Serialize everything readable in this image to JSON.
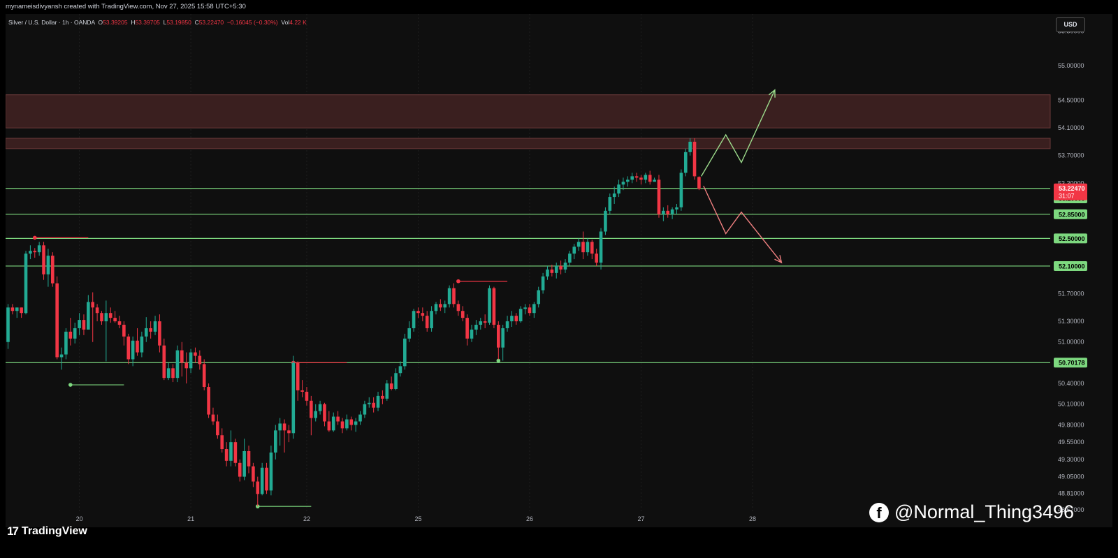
{
  "header": {
    "credit": "mynameisdivyansh created with TradingView.com, Nov 27, 2025 15:58 UTC+5:30"
  },
  "legend": {
    "symbol": "Silver / U.S. Dollar · 1h · OANDA",
    "o_label": "O",
    "o_value": "53.39205",
    "h_label": "H",
    "h_value": "53.39705",
    "l_label": "L",
    "l_value": "53.19850",
    "c_label": "C",
    "c_value": "53.22470",
    "change": "−0.16045 (−0.30%)",
    "vol_label": "Vol",
    "vol_value": "4.22 K"
  },
  "currency_button": "USD",
  "branding": {
    "tradingview_mark": "17",
    "tradingview_name": "TradingView",
    "watermark_icon": "f",
    "watermark_text": "@Normal_Thing3496"
  },
  "colors": {
    "up": "#22ab94",
    "down": "#f23645",
    "hline": "#7dd87f",
    "zone": "#3a1f1f",
    "zone_border": "#6b3a3a",
    "arrow_up": "#9ddc8c",
    "arrow_down": "#f08080",
    "background": "#0f0f0f",
    "grid": "#1f1f1f"
  },
  "chart_data": {
    "type": "candlestick",
    "instrument": "Silver / U.S. Dollar",
    "interval": "1h",
    "broker": "OANDA",
    "y_range": [
      48.52,
      55.75
    ],
    "y_ticks": [
      "55.50000",
      "55.00000",
      "54.50000",
      "54.10000",
      "53.70000",
      "53.30000",
      "51.70000",
      "51.30000",
      "51.00000",
      "50.40000",
      "50.10000",
      "49.80000",
      "49.55000",
      "49.30000",
      "49.05000",
      "48.81000",
      "48.57000"
    ],
    "x_ticks": [
      {
        "label": "20",
        "index": 16
      },
      {
        "label": "21",
        "index": 41
      },
      {
        "label": "22",
        "index": 67
      },
      {
        "label": "25",
        "index": 92
      },
      {
        "label": "26",
        "index": 117
      },
      {
        "label": "27",
        "index": 142
      },
      {
        "label": "28",
        "index": 167
      }
    ],
    "last_price": {
      "value": 53.2247,
      "label": "53.22470",
      "countdown": "31:07"
    },
    "horizontal_levels": [
      {
        "value": 53.2247
      },
      {
        "value": 52.85,
        "label": "52.85000"
      },
      {
        "value": 52.5,
        "label": "52.50000"
      },
      {
        "value": 52.1,
        "label": "52.10000"
      },
      {
        "value": 50.70178,
        "label": "50.70178"
      }
    ],
    "extra_price_tags": [
      {
        "value": 53.2,
        "label": "53.20000"
      }
    ],
    "resistance_zones": [
      [
        54.1,
        54.58
      ],
      [
        53.8,
        53.95
      ]
    ],
    "swing_markers": [
      {
        "kind": "high",
        "index": 6,
        "value": 52.51,
        "end_index": 18
      },
      {
        "kind": "low",
        "index": 14,
        "value": 50.38,
        "end_index": 26
      },
      {
        "kind": "low",
        "index": 56,
        "value": 48.62,
        "end_index": 68
      },
      {
        "kind": "high",
        "index": 64,
        "value": 50.7,
        "end_index": 76
      },
      {
        "kind": "high",
        "index": 101,
        "value": 51.88,
        "end_index": 112
      },
      {
        "kind": "low",
        "index": 110,
        "value": 50.73,
        "end_index": 110
      }
    ],
    "projections": [
      {
        "name": "bullish",
        "points": [
          [
            155.5,
            53.4
          ],
          [
            161,
            54.0
          ],
          [
            164.5,
            53.6
          ],
          [
            172,
            54.65
          ]
        ]
      },
      {
        "name": "bearish",
        "points": [
          [
            156,
            53.26
          ],
          [
            161,
            52.57
          ],
          [
            164.5,
            52.88
          ],
          [
            173.5,
            52.15
          ]
        ]
      }
    ],
    "candles": [
      [
        51.0,
        51.55,
        50.9,
        51.5
      ],
      [
        51.5,
        51.55,
        51.4,
        51.45
      ],
      [
        51.45,
        51.5,
        51.35,
        51.5
      ],
      [
        51.5,
        51.5,
        51.35,
        51.42
      ],
      [
        51.42,
        52.32,
        51.4,
        52.28
      ],
      [
        52.28,
        52.4,
        52.2,
        52.32
      ],
      [
        52.32,
        52.36,
        52.22,
        52.3
      ],
      [
        52.3,
        52.45,
        52.25,
        52.4
      ],
      [
        52.4,
        52.45,
        51.9,
        51.98
      ],
      [
        51.98,
        52.35,
        51.8,
        52.25
      ],
      [
        52.25,
        52.3,
        51.8,
        51.85
      ],
      [
        51.85,
        51.95,
        50.75,
        50.78
      ],
      [
        50.78,
        50.92,
        50.6,
        50.82
      ],
      [
        50.82,
        51.2,
        50.75,
        51.15
      ],
      [
        51.15,
        51.35,
        50.95,
        51.05
      ],
      [
        51.05,
        51.28,
        50.98,
        51.2
      ],
      [
        51.2,
        51.42,
        51.1,
        51.32
      ],
      [
        51.32,
        51.4,
        51.1,
        51.18
      ],
      [
        51.18,
        51.68,
        51.2,
        51.58
      ],
      [
        51.58,
        51.72,
        51.0,
        51.5
      ],
      [
        51.5,
        51.55,
        51.3,
        51.42
      ],
      [
        51.42,
        51.45,
        51.25,
        51.3
      ],
      [
        51.3,
        51.6,
        50.72,
        51.42
      ],
      [
        51.42,
        51.5,
        51.28,
        51.35
      ],
      [
        51.35,
        51.45,
        51.28,
        51.3
      ],
      [
        51.3,
        51.38,
        51.2,
        51.25
      ],
      [
        51.25,
        51.3,
        50.95,
        51.08
      ],
      [
        51.08,
        51.12,
        50.68,
        50.75
      ],
      [
        50.75,
        51.08,
        50.65,
        51.02
      ],
      [
        51.02,
        51.2,
        50.8,
        50.85
      ],
      [
        50.85,
        51.15,
        50.78,
        51.08
      ],
      [
        51.08,
        51.36,
        51.0,
        51.2
      ],
      [
        51.2,
        51.3,
        51.05,
        51.15
      ],
      [
        51.15,
        51.38,
        51.1,
        51.3
      ],
      [
        51.3,
        51.4,
        50.85,
        50.95
      ],
      [
        50.95,
        51.05,
        50.45,
        50.48
      ],
      [
        50.48,
        50.7,
        50.45,
        50.62
      ],
      [
        50.62,
        50.68,
        50.42,
        50.48
      ],
      [
        50.48,
        50.95,
        50.42,
        50.88
      ],
      [
        50.88,
        51.0,
        50.5,
        50.7
      ],
      [
        50.7,
        50.85,
        50.4,
        50.62
      ],
      [
        50.62,
        50.9,
        50.55,
        50.85
      ],
      [
        50.85,
        50.92,
        50.7,
        50.8
      ],
      [
        50.8,
        50.88,
        50.6,
        50.68
      ],
      [
        50.68,
        50.75,
        50.3,
        50.35
      ],
      [
        50.35,
        50.4,
        49.9,
        49.95
      ],
      [
        49.95,
        50.05,
        49.8,
        49.85
      ],
      [
        49.85,
        49.95,
        49.6,
        49.65
      ],
      [
        49.65,
        49.75,
        49.4,
        49.45
      ],
      [
        49.45,
        49.55,
        49.2,
        49.28
      ],
      [
        49.28,
        49.72,
        49.2,
        49.55
      ],
      [
        49.55,
        49.6,
        49.2,
        49.25
      ],
      [
        49.25,
        49.3,
        48.98,
        49.05
      ],
      [
        49.05,
        49.6,
        49.0,
        49.42
      ],
      [
        49.42,
        49.5,
        49.1,
        49.2
      ],
      [
        49.2,
        49.25,
        48.9,
        48.98
      ],
      [
        48.98,
        49.05,
        48.62,
        48.8
      ],
      [
        48.8,
        49.25,
        48.78,
        49.18
      ],
      [
        49.18,
        49.25,
        48.8,
        48.85
      ],
      [
        48.85,
        49.5,
        48.78,
        49.4
      ],
      [
        49.4,
        49.8,
        49.3,
        49.72
      ],
      [
        49.72,
        49.9,
        49.5,
        49.82
      ],
      [
        49.82,
        49.88,
        49.4,
        49.72
      ],
      [
        49.72,
        49.8,
        49.55,
        49.68
      ],
      [
        49.68,
        50.8,
        49.6,
        50.7
      ],
      [
        50.7,
        50.72,
        50.15,
        50.3
      ],
      [
        50.3,
        50.45,
        50.2,
        50.28
      ],
      [
        50.28,
        50.35,
        50.08,
        50.15
      ],
      [
        50.15,
        50.22,
        49.65,
        49.9
      ],
      [
        49.9,
        50.1,
        49.85,
        50.0
      ],
      [
        50.0,
        50.15,
        49.95,
        50.1
      ],
      [
        50.1,
        50.12,
        49.78,
        49.85
      ],
      [
        49.85,
        50.0,
        49.7,
        49.72
      ],
      [
        49.72,
        49.98,
        49.7,
        49.92
      ],
      [
        49.92,
        50.0,
        49.8,
        49.85
      ],
      [
        49.85,
        49.9,
        49.68,
        49.75
      ],
      [
        49.75,
        49.95,
        49.72,
        49.88
      ],
      [
        49.88,
        49.92,
        49.72,
        49.8
      ],
      [
        49.8,
        49.9,
        49.7,
        49.85
      ],
      [
        49.85,
        50.0,
        49.8,
        49.95
      ],
      [
        49.95,
        50.15,
        49.9,
        50.1
      ],
      [
        50.1,
        50.2,
        50.05,
        50.12
      ],
      [
        50.12,
        50.2,
        49.98,
        50.05
      ],
      [
        50.05,
        50.28,
        50.0,
        50.22
      ],
      [
        50.22,
        50.3,
        50.1,
        50.18
      ],
      [
        50.18,
        50.45,
        50.15,
        50.4
      ],
      [
        50.4,
        50.5,
        50.3,
        50.32
      ],
      [
        50.32,
        50.62,
        50.3,
        50.55
      ],
      [
        50.55,
        50.72,
        50.5,
        50.65
      ],
      [
        50.65,
        51.12,
        50.6,
        51.05
      ],
      [
        51.05,
        51.3,
        51.0,
        51.2
      ],
      [
        51.2,
        51.48,
        51.15,
        51.45
      ],
      [
        51.45,
        51.5,
        51.35,
        51.42
      ],
      [
        51.42,
        51.5,
        51.3,
        51.38
      ],
      [
        51.38,
        51.45,
        51.15,
        51.2
      ],
      [
        51.2,
        51.52,
        51.15,
        51.45
      ],
      [
        51.45,
        51.58,
        51.4,
        51.55
      ],
      [
        51.55,
        51.62,
        51.45,
        51.5
      ],
      [
        51.5,
        51.6,
        51.42,
        51.55
      ],
      [
        51.55,
        51.82,
        51.5,
        51.78
      ],
      [
        51.78,
        51.85,
        51.5,
        51.55
      ],
      [
        51.55,
        51.6,
        51.38,
        51.45
      ],
      [
        51.45,
        51.52,
        51.3,
        51.35
      ],
      [
        51.35,
        51.4,
        50.95,
        51.05
      ],
      [
        51.05,
        51.25,
        51.0,
        51.18
      ],
      [
        51.18,
        51.32,
        51.1,
        51.25
      ],
      [
        51.25,
        51.35,
        51.18,
        51.3
      ],
      [
        51.3,
        51.4,
        51.2,
        51.28
      ],
      [
        51.28,
        51.82,
        51.25,
        51.78
      ],
      [
        51.78,
        51.8,
        51.2,
        51.25
      ],
      [
        51.25,
        51.3,
        50.75,
        50.92
      ],
      [
        50.92,
        51.25,
        50.73,
        51.2
      ],
      [
        51.2,
        51.38,
        51.15,
        51.3
      ],
      [
        51.3,
        51.45,
        51.22,
        51.38
      ],
      [
        51.38,
        51.42,
        51.25,
        51.3
      ],
      [
        51.3,
        51.52,
        51.28,
        51.48
      ],
      [
        51.48,
        51.55,
        51.4,
        51.5
      ],
      [
        51.5,
        51.55,
        51.38,
        51.42
      ],
      [
        51.42,
        51.58,
        51.35,
        51.55
      ],
      [
        51.55,
        51.8,
        51.5,
        51.75
      ],
      [
        51.75,
        52.0,
        51.7,
        51.95
      ],
      [
        51.95,
        52.1,
        51.9,
        52.05
      ],
      [
        52.05,
        52.12,
        51.95,
        52.0
      ],
      [
        52.0,
        52.15,
        51.92,
        52.1
      ],
      [
        52.1,
        52.18,
        51.98,
        52.05
      ],
      [
        52.05,
        52.2,
        52.0,
        52.15
      ],
      [
        52.15,
        52.32,
        52.1,
        52.28
      ],
      [
        52.28,
        52.42,
        52.2,
        52.38
      ],
      [
        52.38,
        52.5,
        52.32,
        52.45
      ],
      [
        52.45,
        52.6,
        52.2,
        52.3
      ],
      [
        52.3,
        52.5,
        52.25,
        52.45
      ],
      [
        52.45,
        52.48,
        52.2,
        52.28
      ],
      [
        52.28,
        52.35,
        52.1,
        52.15
      ],
      [
        52.15,
        52.65,
        52.05,
        52.6
      ],
      [
        52.6,
        52.95,
        52.55,
        52.9
      ],
      [
        52.9,
        53.15,
        52.85,
        53.1
      ],
      [
        53.1,
        53.25,
        53.0,
        53.15
      ],
      [
        53.15,
        53.35,
        53.1,
        53.28
      ],
      [
        53.28,
        53.38,
        53.2,
        53.32
      ],
      [
        53.32,
        53.4,
        53.25,
        53.35
      ],
      [
        53.35,
        53.45,
        53.3,
        53.4
      ],
      [
        53.4,
        53.45,
        53.32,
        53.38
      ],
      [
        53.38,
        53.42,
        53.28,
        53.35
      ],
      [
        53.35,
        53.45,
        53.3,
        53.42
      ],
      [
        53.42,
        53.48,
        53.28,
        53.32
      ],
      [
        53.32,
        53.38,
        53.35,
        53.35
      ],
      [
        53.35,
        53.42,
        52.8,
        52.85
      ],
      [
        52.85,
        52.95,
        52.75,
        52.9
      ],
      [
        52.9,
        52.98,
        52.8,
        52.85
      ],
      [
        52.85,
        52.95,
        52.78,
        52.92
      ],
      [
        52.92,
        53.0,
        52.85,
        52.95
      ],
      [
        52.95,
        53.5,
        52.9,
        53.45
      ],
      [
        53.45,
        53.8,
        53.4,
        53.75
      ],
      [
        53.75,
        53.95,
        53.7,
        53.9
      ],
      [
        53.9,
        53.95,
        53.35,
        53.4
      ],
      [
        53.39,
        53.4,
        53.2,
        53.22
      ]
    ]
  }
}
